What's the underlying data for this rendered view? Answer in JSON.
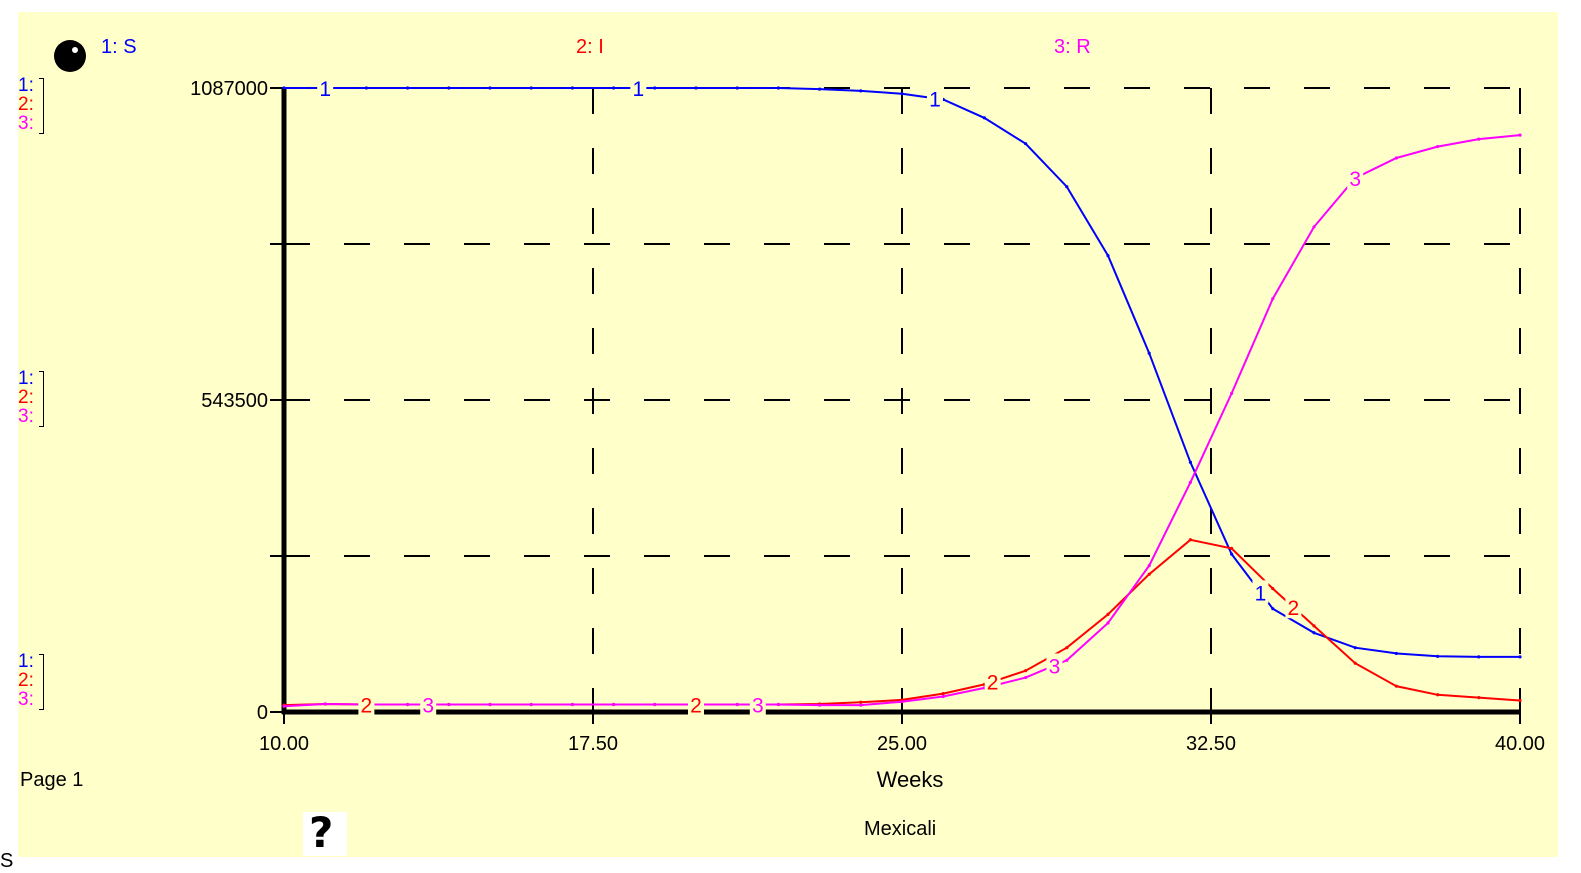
{
  "legend": [
    {
      "id": "1",
      "label": "1: S",
      "color": "#0000ff"
    },
    {
      "id": "2",
      "label": "2: I",
      "color": "#ff0000"
    },
    {
      "id": "3",
      "label": "3: R",
      "color": "#ff00ff"
    }
  ],
  "axis_markers": {
    "m1": "1:",
    "m2": "2:",
    "m3": "3:"
  },
  "page_label": "Page 1",
  "subtitle": "Mexicali",
  "footer_text": "S",
  "colors": {
    "background": "#ffffc9",
    "grid": "#000000"
  },
  "icons": {
    "top_left": "ball-icon",
    "bottom": "question-mark-icon"
  },
  "help_glyph": "?",
  "chart_data": {
    "type": "line",
    "xlabel": "Weeks",
    "ylabel": "",
    "xlim": [
      10,
      40
    ],
    "ylim": [
      0,
      1087000
    ],
    "x_ticks": [
      "10.00",
      "17.50",
      "25.00",
      "32.50",
      "40.00"
    ],
    "y_ticks": [
      "1087000",
      "543500",
      "0"
    ],
    "grid": true,
    "x": [
      10,
      11,
      12,
      13,
      14,
      15,
      16,
      17,
      18,
      19,
      20,
      21,
      22,
      23,
      24,
      25,
      26,
      27,
      28,
      29,
      30,
      31,
      32,
      33,
      34,
      35,
      36,
      37,
      38,
      39,
      40
    ],
    "series": [
      {
        "name": "1: S",
        "marker": "1",
        "color": "#0000ff",
        "values": [
          1087000,
          1087000,
          1087000,
          1087000,
          1087000,
          1087000,
          1087000,
          1087000,
          1087000,
          1087000,
          1087000,
          1087000,
          1087000,
          1085000,
          1082000,
          1077000,
          1067000,
          1035000,
          990000,
          915000,
          795000,
          625000,
          435000,
          275000,
          180000,
          138000,
          112000,
          102000,
          97000,
          96000,
          96000
        ]
      },
      {
        "name": "2: I",
        "marker": "2",
        "color": "#ff0000",
        "values": [
          12000,
          14000,
          13000,
          13000,
          13000,
          13000,
          13000,
          13000,
          13000,
          13000,
          13000,
          13000,
          13000,
          14000,
          17000,
          21000,
          32000,
          48000,
          72000,
          112000,
          170000,
          240000,
          300000,
          285000,
          215000,
          150000,
          85000,
          45000,
          30000,
          25000,
          20000
        ]
      },
      {
        "name": "3: R",
        "marker": "3",
        "color": "#ff00ff",
        "values": [
          10000,
          14000,
          13000,
          13000,
          13000,
          13000,
          13000,
          13000,
          13000,
          13000,
          13000,
          13000,
          13000,
          12000,
          12000,
          18000,
          27000,
          42000,
          60000,
          90000,
          155000,
          255000,
          400000,
          555000,
          720000,
          845000,
          930000,
          965000,
          985000,
          998000,
          1005000
        ]
      }
    ],
    "series_label_positions": [
      {
        "series": 0,
        "x": [
          11,
          18.6,
          25.8,
          33.7
        ]
      },
      {
        "series": 1,
        "x": [
          12,
          20,
          27.2,
          34.5
        ]
      },
      {
        "series": 2,
        "x": [
          13.5,
          21.5,
          28.7,
          36
        ]
      }
    ]
  }
}
